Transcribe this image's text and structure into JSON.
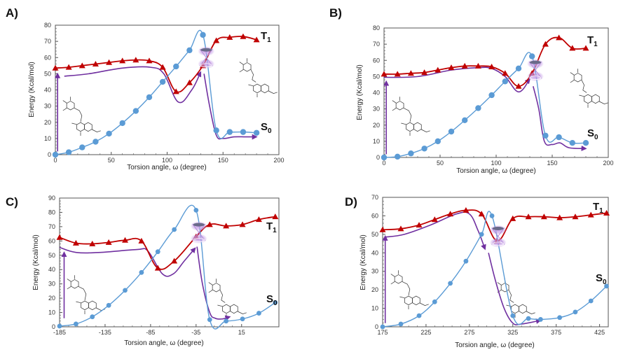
{
  "figure": {
    "colors": {
      "s0": "#5b9bd5",
      "s0_marker": "#5b9bd5",
      "t1": "#c00000",
      "path": "#7030a0",
      "ci_glow": "#c39be6",
      "axis": "#555555"
    }
  },
  "chart_data": [
    {
      "panel": "A)",
      "type": "line",
      "xlabel": "Torsion angle, ω (degree)",
      "ylabel": "Energy (Kcal/mol)",
      "xlim": [
        0,
        200
      ],
      "ylim": [
        0,
        80
      ],
      "xticks": [
        0,
        50,
        100,
        150,
        200
      ],
      "yticks": [
        0,
        10,
        20,
        30,
        40,
        50,
        60,
        70,
        80
      ],
      "xtick_labels": [
        "0",
        "50",
        "100",
        "150",
        "200"
      ],
      "ytick_labels": [
        "0",
        "10",
        "20",
        "30",
        "40",
        "50",
        "60",
        "70",
        "80"
      ],
      "series": [
        {
          "name": "T1",
          "label_main": "T",
          "label_sub": "1",
          "marker": "triangle",
          "x": [
            0,
            12,
            24,
            36,
            48,
            60,
            72,
            84,
            96,
            108,
            120,
            132,
            144,
            156,
            168,
            180
          ],
          "y": [
            53.5,
            54,
            55,
            56,
            57,
            58,
            58.5,
            58,
            54,
            39,
            44.5,
            55,
            70.5,
            72.5,
            73,
            71
          ]
        },
        {
          "name": "S0",
          "label_main": "S",
          "label_sub": "0",
          "marker": "circle",
          "x": [
            0,
            12,
            24,
            36,
            48,
            60,
            72,
            84,
            96,
            108,
            120,
            132,
            144,
            156,
            168,
            180
          ],
          "y": [
            0,
            1.5,
            4.5,
            8,
            13,
            19.5,
            27,
            35.5,
            45,
            54.5,
            64.5,
            74,
            15,
            14,
            14,
            13.5
          ]
        }
      ],
      "path_arrow": {
        "x": [
          8,
          30,
          60,
          85,
          97,
          110,
          122,
          130
        ],
        "y": [
          48.5,
          50,
          53.5,
          54,
          50,
          32.5,
          40,
          51
        ]
      },
      "decay_arrow": {
        "x": [
          133,
          138,
          144,
          150,
          160,
          170,
          180
        ],
        "y": [
          50,
          30,
          12,
          10,
          11,
          11,
          11
        ]
      },
      "excitation_arrow": {
        "x": 2,
        "y0": 2,
        "y1": 50
      },
      "conical_intersection": {
        "x": 135,
        "y": 60
      }
    },
    {
      "panel": "B)",
      "type": "line",
      "xlabel": "Torsion angle, ω (degree)",
      "ylabel": "Energy (Kcal/mol)",
      "xlim": [
        0,
        200
      ],
      "ylim": [
        0,
        80
      ],
      "xticks": [
        0,
        50,
        100,
        150,
        200
      ],
      "yticks": [
        0,
        10,
        20,
        30,
        40,
        50,
        60,
        70,
        80
      ],
      "xtick_labels": [
        "0",
        "50",
        "100",
        "150",
        "200"
      ],
      "ytick_labels": [
        "0",
        "10",
        "20",
        "30",
        "40",
        "50",
        "60",
        "70",
        "80"
      ],
      "series": [
        {
          "name": "T1",
          "label_main": "T",
          "label_sub": "1",
          "marker": "triangle",
          "x": [
            0,
            12,
            24,
            36,
            48,
            60,
            72,
            84,
            96,
            108,
            120,
            132,
            144,
            156,
            168,
            180
          ],
          "y": [
            51.5,
            51.5,
            52,
            52.5,
            54,
            55.5,
            56.5,
            56.5,
            56,
            52,
            44,
            52,
            70,
            74,
            67.5,
            67.5
          ]
        },
        {
          "name": "S0",
          "label_main": "S",
          "label_sub": "0",
          "marker": "circle",
          "x": [
            0,
            12,
            24,
            36,
            48,
            60,
            72,
            84,
            96,
            108,
            120,
            132,
            144,
            156,
            168,
            180
          ],
          "y": [
            0,
            0.5,
            2.5,
            5.5,
            10,
            16,
            23,
            30.5,
            38.5,
            47,
            55,
            62.5,
            13.5,
            12.5,
            9,
            9
          ]
        },
        {
          "name": "T1 path",
          "marker": "none",
          "x": [
            0,
            30,
            60,
            84,
            96,
            108,
            120,
            130
          ],
          "y": [
            49.5,
            50,
            54,
            55.5,
            55,
            50,
            40.5,
            48.5
          ]
        }
      ],
      "decay_arrow": {
        "x": [
          133,
          138,
          143,
          150,
          157,
          165,
          180
        ],
        "y": [
          44,
          30,
          10,
          8,
          9,
          6,
          5.5
        ]
      },
      "excitation_arrow": {
        "x": 2,
        "y0": 2,
        "y1": 47
      },
      "conical_intersection": {
        "x": 135,
        "y": 54
      }
    },
    {
      "panel": "C)",
      "type": "line",
      "xlabel": "Torsion angle, ω (degree)",
      "ylabel": "Energy (Kcal/mol)",
      "xlim": [
        -185,
        56
      ],
      "ylim": [
        0,
        90
      ],
      "xticks": [
        -185,
        -135,
        -85,
        -35,
        15
      ],
      "yticks": [
        0,
        10,
        20,
        30,
        40,
        50,
        60,
        70,
        80,
        90
      ],
      "xtick_labels": [
        "-185",
        "-135",
        "-85",
        "-35",
        "15"
      ],
      "ytick_labels": [
        "0",
        "10",
        "20",
        "30",
        "40",
        "50",
        "60",
        "70",
        "80",
        "90"
      ],
      "series": [
        {
          "name": "T1",
          "label_main": "T",
          "label_sub": "1",
          "marker": "triangle",
          "x": [
            -185,
            -167,
            -149,
            -131,
            -113,
            -95,
            -77,
            -59,
            -35,
            -20,
            -2,
            16,
            34,
            52
          ],
          "y": [
            62.5,
            58.5,
            58,
            59,
            60.5,
            60,
            41,
            46,
            63,
            71.5,
            70.5,
            71.5,
            75,
            77
          ]
        },
        {
          "name": "S0",
          "label_main": "S",
          "label_sub": "0",
          "marker": "circle",
          "x": [
            -185,
            -167,
            -149,
            -131,
            -113,
            -95,
            -77,
            -59,
            -35,
            -20,
            -2,
            16,
            34,
            52
          ],
          "y": [
            0.5,
            2,
            7,
            15,
            25.5,
            38,
            52.5,
            68,
            81.5,
            5,
            4,
            5.5,
            9.5,
            17
          ]
        }
      ],
      "path_arrow": {
        "x": [
          -185,
          -167,
          -140,
          -100,
          -88,
          -72,
          -60,
          -48,
          -36
        ],
        "y": [
          55.5,
          52,
          52,
          54,
          53,
          37,
          37,
          46,
          55
        ]
      },
      "decay_arrow": {
        "x": [
          -34,
          -28,
          -20,
          -14,
          -6,
          2
        ],
        "y": [
          56,
          30,
          10,
          6,
          5.5,
          7
        ]
      },
      "excitation_arrow": {
        "x": -180,
        "y0": 6,
        "y1": 52
      },
      "conical_intersection": {
        "x": -32,
        "y": 66
      }
    },
    {
      "panel": "D)",
      "type": "line",
      "xlabel": "Torsion angle, ω (degree)",
      "ylabel": "Energy (Kcal/mol)",
      "xlim": [
        175,
        435
      ],
      "ylim": [
        0,
        70
      ],
      "xticks": [
        175,
        225,
        275,
        325,
        375,
        425
      ],
      "yticks": [
        0,
        10,
        20,
        30,
        40,
        50,
        60,
        70
      ],
      "xtick_labels": [
        "175",
        "225",
        "275",
        "325",
        "375",
        "425"
      ],
      "ytick_labels": [
        "0",
        "10",
        "20",
        "30",
        "40",
        "50",
        "60",
        "70"
      ],
      "series": [
        {
          "name": "T1",
          "label_main": "T",
          "label_sub": "1",
          "marker": "triangle",
          "x": [
            175,
            196,
            217,
            235,
            253,
            271,
            289,
            307,
            325,
            343,
            361,
            379,
            397,
            415,
            433
          ],
          "y": [
            52.5,
            53,
            55,
            58,
            61,
            63,
            61,
            46.5,
            58.5,
            59.5,
            59.5,
            59,
            59.5,
            60.5,
            61.5
          ]
        },
        {
          "name": "S0",
          "label_main": "S",
          "label_sub": "0",
          "marker": "circle",
          "x": [
            175,
            196,
            217,
            235,
            253,
            271,
            289,
            301,
            325,
            343,
            357,
            379,
            397,
            415,
            433
          ],
          "y": [
            0,
            1.5,
            6,
            13.5,
            23.5,
            35.5,
            50,
            60,
            6,
            4.5,
            4,
            5,
            8,
            14,
            22
          ]
        }
      ],
      "path_arrow": {
        "x": [
          178,
          200,
          230,
          260,
          275,
          285,
          293
        ],
        "y": [
          48.5,
          50,
          55,
          61,
          61,
          52,
          42
        ]
      },
      "decay_arrow": {
        "x": [
          297,
          305,
          315,
          325,
          335,
          357
        ],
        "y": [
          40,
          25,
          10,
          2,
          1.5,
          3.5
        ]
      },
      "excitation_arrow": {
        "x": 178,
        "y0": 2,
        "y1": 49
      },
      "conical_intersection": {
        "x": 308,
        "y": 49
      }
    }
  ]
}
